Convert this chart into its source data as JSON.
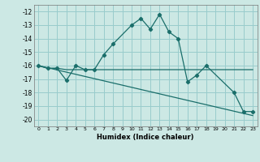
{
  "title": "",
  "xlabel": "Humidex (Indice chaleur)",
  "background_color": "#cce8e4",
  "grid_color": "#99cccc",
  "line_color": "#1a6e6a",
  "xlim": [
    -0.5,
    23.5
  ],
  "ylim": [
    -20.5,
    -11.5
  ],
  "yticks": [
    -20,
    -19,
    -18,
    -17,
    -16,
    -15,
    -14,
    -13,
    -12
  ],
  "xticks": [
    0,
    1,
    2,
    3,
    4,
    5,
    6,
    7,
    8,
    9,
    10,
    11,
    12,
    13,
    14,
    15,
    16,
    17,
    18,
    19,
    20,
    21,
    22,
    23
  ],
  "series1_x": [
    0,
    1,
    2,
    3,
    4,
    5,
    6,
    7,
    8,
    10,
    11,
    12,
    13,
    14,
    15,
    16,
    17,
    18,
    21,
    22,
    23
  ],
  "series1_y": [
    -16.0,
    -16.2,
    -16.2,
    -17.1,
    -16.0,
    -16.3,
    -16.3,
    -15.2,
    -14.4,
    -13.0,
    -12.5,
    -13.3,
    -12.2,
    -13.5,
    -14.0,
    -17.2,
    -16.7,
    -16.0,
    -18.0,
    -19.4,
    -19.4
  ],
  "series2_x": [
    0,
    1,
    2,
    3,
    4,
    5,
    6,
    7,
    8,
    9,
    10,
    11,
    12,
    13,
    14,
    15,
    16,
    17,
    18,
    19,
    20,
    21,
    22,
    23
  ],
  "series2_y": [
    -16.0,
    -16.2,
    -16.2,
    -16.3,
    -16.3,
    -16.3,
    -16.3,
    -16.3,
    -16.3,
    -16.3,
    -16.3,
    -16.3,
    -16.3,
    -16.3,
    -16.3,
    -16.3,
    -16.3,
    -16.3,
    -16.3,
    -16.3,
    -16.3,
    -16.3,
    -16.3,
    -16.3
  ],
  "series3_x": [
    0,
    23
  ],
  "series3_y": [
    -16.0,
    -19.7
  ]
}
